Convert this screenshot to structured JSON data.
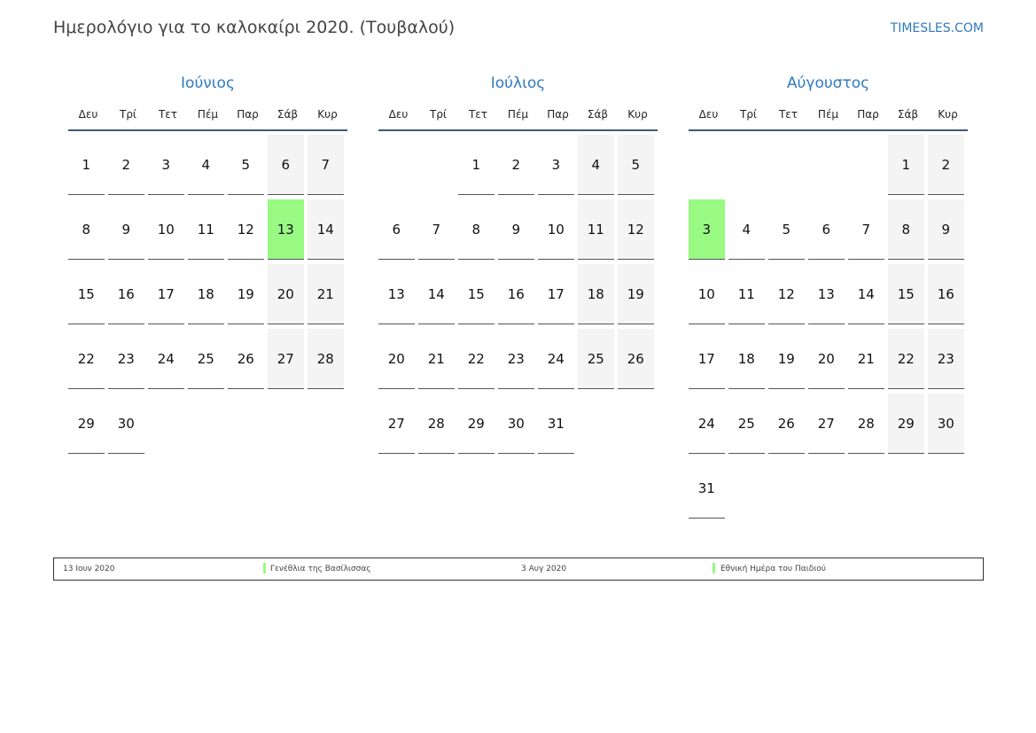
{
  "header": {
    "title": "Ημερολόγιο για το καλοκαίρι 2020. (Τουβαλού)",
    "brand": "TIMESLES.COM"
  },
  "weekdays": [
    "Δευ",
    "Τρί",
    "Τετ",
    "Πέμ",
    "Παρ",
    "Σάβ",
    "Κυρ"
  ],
  "colors": {
    "holiday": "#98fa83",
    "weekend": "#f4f4f4",
    "accent": "#2f7ac0"
  },
  "months": [
    {
      "name": "Ιούνιος",
      "weeks": [
        [
          1,
          2,
          3,
          4,
          5,
          6,
          7
        ],
        [
          8,
          9,
          10,
          11,
          12,
          13,
          14
        ],
        [
          15,
          16,
          17,
          18,
          19,
          20,
          21
        ],
        [
          22,
          23,
          24,
          25,
          26,
          27,
          28
        ],
        [
          29,
          30,
          null,
          null,
          null,
          null,
          null
        ]
      ],
      "holidays": [
        13
      ]
    },
    {
      "name": "Ιούλιος",
      "weeks": [
        [
          null,
          null,
          1,
          2,
          3,
          4,
          5
        ],
        [
          6,
          7,
          8,
          9,
          10,
          11,
          12
        ],
        [
          13,
          14,
          15,
          16,
          17,
          18,
          19
        ],
        [
          20,
          21,
          22,
          23,
          24,
          25,
          26
        ],
        [
          27,
          28,
          29,
          30,
          31,
          null,
          null
        ]
      ],
      "holidays": []
    },
    {
      "name": "Αύγουστος",
      "weeks": [
        [
          null,
          null,
          null,
          null,
          null,
          1,
          2
        ],
        [
          3,
          4,
          5,
          6,
          7,
          8,
          9
        ],
        [
          10,
          11,
          12,
          13,
          14,
          15,
          16
        ],
        [
          17,
          18,
          19,
          20,
          21,
          22,
          23
        ],
        [
          24,
          25,
          26,
          27,
          28,
          29,
          30
        ],
        [
          31,
          null,
          null,
          null,
          null,
          null,
          null
        ]
      ],
      "holidays": [
        3
      ]
    }
  ],
  "legend": [
    {
      "date": "13 Ιουν 2020",
      "name": "Γενέθλια της Βασίλισσας"
    },
    {
      "date": "3 Αυγ 2020",
      "name": "Εθνική Ημέρα του Παιδιού"
    }
  ]
}
